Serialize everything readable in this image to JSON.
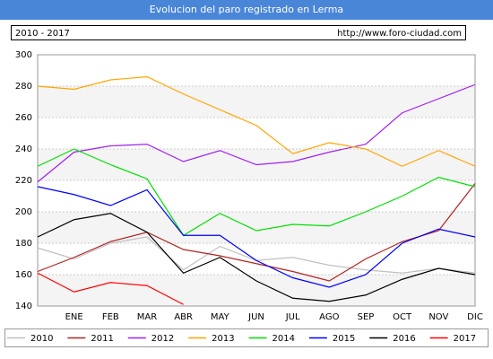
{
  "chart_data": {
    "type": "line",
    "title": "Evolucion del paro registrado en Lerma",
    "subtitle": "2010 - 2017",
    "source": "http://www.foro-ciudad.com",
    "categories": [
      null,
      "ENE",
      "FEB",
      "MAR",
      "ABR",
      "MAY",
      "JUN",
      "JUL",
      "AGO",
      "SEP",
      "OCT",
      "NOV",
      "DIC"
    ],
    "ylim": [
      140,
      300
    ],
    "yticks": [
      140,
      160,
      180,
      200,
      220,
      240,
      260,
      280,
      300
    ],
    "grid": true,
    "legend": "bottom",
    "series": [
      {
        "name": "2010",
        "color": "#c0c0c0",
        "values": [
          177,
          170,
          180,
          184,
          163,
          178,
          169,
          171,
          166,
          163,
          161,
          164,
          161
        ]
      },
      {
        "name": "2011",
        "color": "#b22222",
        "values": [
          162,
          171,
          181,
          187,
          176,
          172,
          167,
          162,
          156,
          170,
          181,
          188,
          218
        ]
      },
      {
        "name": "2012",
        "color": "#a020f0",
        "values": [
          219,
          238,
          242,
          243,
          232,
          239,
          230,
          232,
          238,
          243,
          263,
          272,
          281
        ]
      },
      {
        "name": "2013",
        "color": "#ffa500",
        "values": [
          280,
          278,
          284,
          286,
          275,
          265,
          255,
          237,
          244,
          240,
          229,
          239,
          229
        ]
      },
      {
        "name": "2014",
        "color": "#00e000",
        "values": [
          229,
          240,
          230,
          221,
          185,
          199,
          188,
          192,
          191,
          200,
          210,
          222,
          216
        ]
      },
      {
        "name": "2015",
        "color": "#0000ff",
        "values": [
          216,
          211,
          204,
          214,
          185,
          185,
          169,
          158,
          152,
          160,
          180,
          189,
          184
        ]
      },
      {
        "name": "2016",
        "color": "#000000",
        "values": [
          184,
          195,
          199,
          187,
          161,
          171,
          156,
          145,
          143,
          147,
          157,
          164,
          160
        ]
      },
      {
        "name": "2017",
        "color": "#ff0000",
        "values": [
          161,
          149,
          155,
          153,
          141,
          null,
          null,
          null,
          null,
          null,
          null,
          null,
          null
        ]
      }
    ]
  }
}
